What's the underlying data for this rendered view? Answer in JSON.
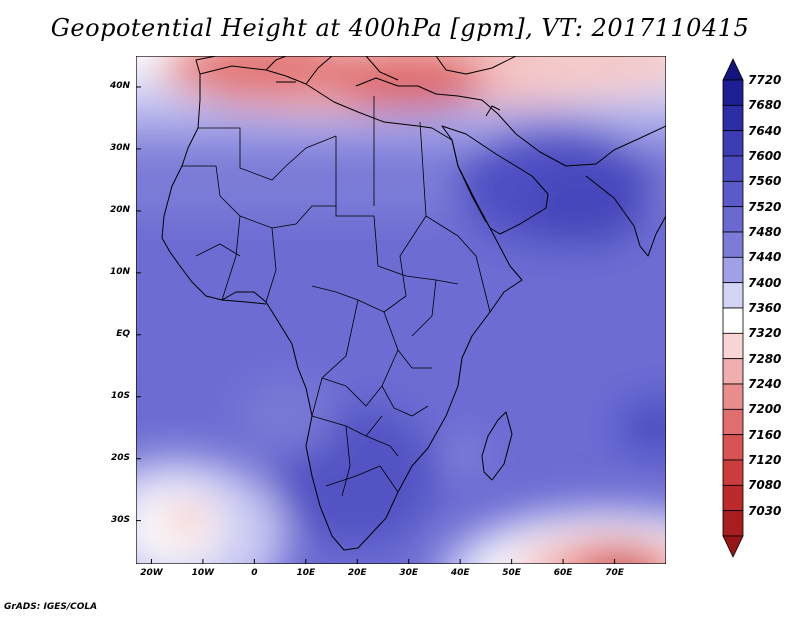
{
  "title": "Geopotential Height at 400hPa [gpm], VT: 2017110415",
  "footer": "GrADS: IGES/COLA",
  "map": {
    "lon_range": [
      -23,
      80
    ],
    "lat_range": [
      -37,
      45
    ],
    "lat_ticks": [
      {
        "value": 40,
        "label": "40N"
      },
      {
        "value": 30,
        "label": "30N"
      },
      {
        "value": 20,
        "label": "20N"
      },
      {
        "value": 10,
        "label": "10N"
      },
      {
        "value": 0,
        "label": "EQ"
      },
      {
        "value": -10,
        "label": "10S"
      },
      {
        "value": -20,
        "label": "20S"
      },
      {
        "value": -30,
        "label": "30S"
      }
    ],
    "lon_ticks": [
      {
        "value": -20,
        "label": "20W"
      },
      {
        "value": -10,
        "label": "10W"
      },
      {
        "value": 0,
        "label": "0"
      },
      {
        "value": 10,
        "label": "10E"
      },
      {
        "value": 20,
        "label": "20E"
      },
      {
        "value": 30,
        "label": "30E"
      },
      {
        "value": 40,
        "label": "40E"
      },
      {
        "value": 50,
        "label": "50E"
      },
      {
        "value": 60,
        "label": "60E"
      },
      {
        "value": 70,
        "label": "70E"
      }
    ]
  },
  "colorbar": {
    "labels": [
      "7720",
      "7680",
      "7640",
      "7600",
      "7560",
      "7520",
      "7480",
      "7440",
      "7400",
      "7360",
      "7320",
      "7280",
      "7240",
      "7200",
      "7160",
      "7120",
      "7080",
      "7030"
    ],
    "colors": [
      "#1e1e96",
      "#2d2da8",
      "#3c3cb4",
      "#4b4bbf",
      "#5a5ac8",
      "#6969d0",
      "#7c7cd8",
      "#a0a0e6",
      "#d4d4f4",
      "#ffffff",
      "#f8d4d4",
      "#f0aeae",
      "#e88c8c",
      "#e06e6e",
      "#d85454",
      "#cc3c3c",
      "#bc2a2a",
      "#a81e1e"
    ],
    "top_arrow_color": "#14147e",
    "bottom_arrow_color": "#961616"
  }
}
